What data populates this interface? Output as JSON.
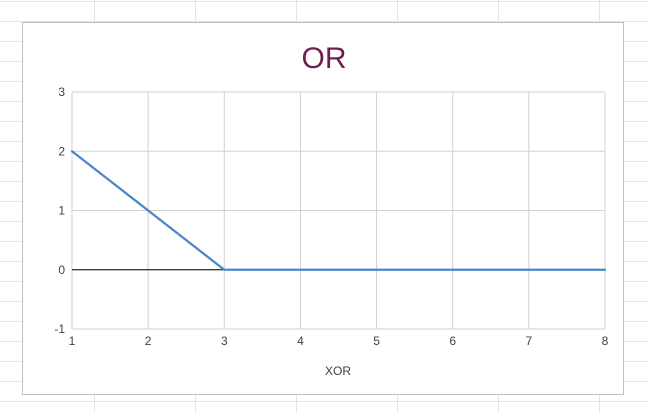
{
  "chart_data": {
    "type": "line",
    "title": "OR",
    "xlabel": "XOR",
    "ylabel": "",
    "xlim": [
      1,
      8
    ],
    "ylim": [
      -1,
      3
    ],
    "xticks": [
      1,
      2,
      3,
      4,
      5,
      6,
      7,
      8
    ],
    "yticks": [
      -1,
      0,
      1,
      2,
      3
    ],
    "grid": true,
    "legend": "none",
    "series": [
      {
        "x": [
          1,
          2,
          3,
          4,
          5,
          6,
          7,
          8
        ],
        "values": [
          2,
          1,
          0,
          0,
          0,
          0,
          0,
          0
        ],
        "color": "#4a86c8"
      }
    ],
    "colors": {
      "title": "#6d1f4e",
      "grid": "#d0d0d0",
      "axis": "#000000",
      "text": "#404040"
    }
  }
}
